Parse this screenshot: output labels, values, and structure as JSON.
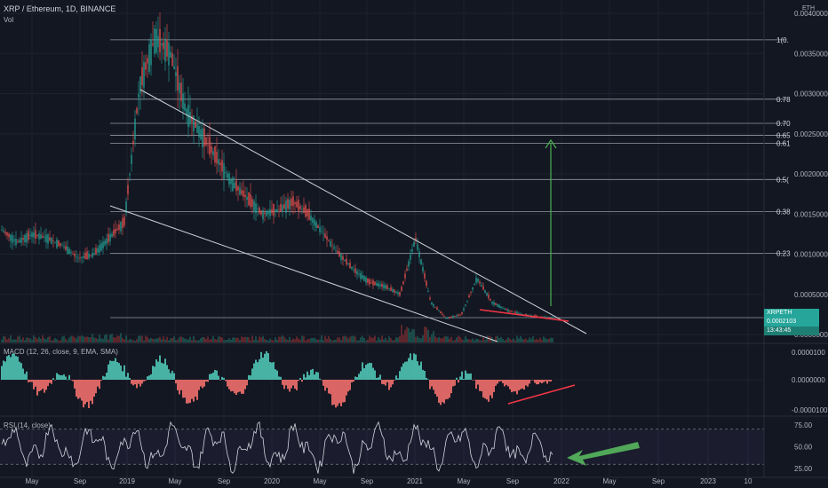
{
  "header": {
    "symbol_line": "XRP / Ethereum, 1D, BINANCE",
    "vol_label": "Vol",
    "currency": "ETH"
  },
  "price_tag": {
    "ticker": "XRPETH",
    "price": "0.0002103",
    "countdown": "13:43:45"
  },
  "panes": {
    "macd_label": "MACD (12, 26, close, 9, EMA, SMA)",
    "rsi_label": "RSI (14, close)"
  },
  "colors": {
    "background": "#131722",
    "bull": "#26a69a",
    "bear": "#ef5350",
    "trendline": "#d1d4dc",
    "target_arrow": "#4caf50",
    "rsi_arrow": "#4caf50",
    "red_line": "#f23645"
  },
  "chart_data": [
    {
      "type": "line",
      "pane": "price",
      "yaxis_labels": [
        "0.0040000",
        "0.0035000",
        "0.0030000",
        "0.0025000",
        "0.0020000",
        "0.0015000",
        "0.0010000",
        "0.0005000",
        "0.0000000"
      ],
      "ylim": [
        0,
        0.004
      ],
      "fib_levels": [
        {
          "label": "1(0.",
          "value": 0.00367
        },
        {
          "label": "0.78",
          "value": 0.00293
        },
        {
          "label": "0.70",
          "value": 0.00263
        },
        {
          "label": "0.65",
          "value": 0.00248
        },
        {
          "label": "0.61",
          "value": 0.00238
        },
        {
          "label": "0.5(",
          "value": 0.00193
        },
        {
          "label": "0.38",
          "value": 0.00153
        },
        {
          "label": "0.23",
          "value": 0.00101
        },
        {
          "label": "",
          "value": 0.00021
        }
      ],
      "series": [
        {
          "values": [
            0.0013,
            0.00115,
            0.00125,
            0.0012,
            0.0011,
            0.00095,
            0.001,
            0.0012,
            0.0014,
            0.0031,
            0.0037,
            0.0035,
            0.0028,
            0.0025,
            0.0022,
            0.0019,
            0.0017,
            0.0015,
            0.00155,
            0.00165,
            0.0015,
            0.00125,
            0.001,
            0.0008,
            0.00065,
            0.0006,
            0.0005,
            0.0012,
            0.0004,
            0.0002,
            0.00025,
            0.0007,
            0.0004,
            0.0003,
            0.00025,
            0.00022,
            0.00021
          ]
        }
      ],
      "x_labels": [
        "May",
        "Sep",
        "2019",
        "May",
        "Sep",
        "2020",
        "May",
        "Sep",
        "2021",
        "May",
        "Sep",
        "2022",
        "May",
        "Sep",
        "2023",
        "10"
      ]
    },
    {
      "type": "bar",
      "pane": "macd",
      "yaxis_labels": [
        "0.0000100",
        "0.0000000",
        "-0.0000100"
      ],
      "ylim": [
        -1.25e-05,
        1.25e-05
      ]
    },
    {
      "type": "line",
      "pane": "rsi",
      "yaxis_labels": [
        "75.00",
        "50.00",
        "25.00"
      ],
      "ylim": [
        15,
        85
      ]
    }
  ]
}
